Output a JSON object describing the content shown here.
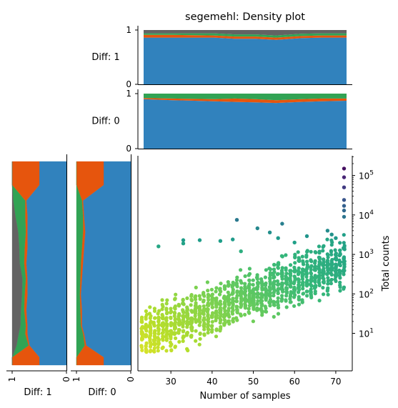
{
  "colors": {
    "blue": "#3182bd",
    "orange": "#e6550d",
    "green": "#31a354",
    "gray": "#636363",
    "purple": "#9467bd",
    "tan": "#c49c94",
    "scatter_low": "#fde725",
    "scatter_high": "#440154"
  },
  "chart_data": [
    {
      "type": "area",
      "panel": "top-diff-1",
      "title": "segemehl: Density plot",
      "ylabel": "Diff: 1",
      "ylim": [
        0,
        1
      ],
      "yticks": [
        "0",
        "1"
      ],
      "x": [
        23,
        30,
        40,
        45,
        50,
        55,
        61,
        66,
        72
      ],
      "stack": [
        {
          "color_key": "blue",
          "values": [
            0.86,
            0.86,
            0.86,
            0.84,
            0.84,
            0.82,
            0.85,
            0.86,
            0.86
          ]
        },
        {
          "color_key": "orange",
          "values": [
            0.05,
            0.05,
            0.04,
            0.04,
            0.04,
            0.04,
            0.04,
            0.04,
            0.04
          ]
        },
        {
          "color_key": "green",
          "values": [
            0.03,
            0.03,
            0.04,
            0.04,
            0.04,
            0.04,
            0.04,
            0.04,
            0.04
          ]
        },
        {
          "color_key": "gray",
          "values": [
            0.06,
            0.06,
            0.06,
            0.08,
            0.08,
            0.1,
            0.07,
            0.06,
            0.06
          ]
        }
      ]
    },
    {
      "type": "area",
      "panel": "top-diff-0",
      "ylabel": "Diff: 0",
      "ylim": [
        0,
        1
      ],
      "yticks": [
        "0",
        "1"
      ],
      "x": [
        23,
        30,
        40,
        45,
        50,
        55,
        61,
        66,
        72
      ],
      "stack": [
        {
          "color_key": "blue",
          "values": [
            0.9,
            0.88,
            0.86,
            0.85,
            0.84,
            0.83,
            0.85,
            0.86,
            0.87
          ]
        },
        {
          "color_key": "orange",
          "values": [
            0.02,
            0.03,
            0.04,
            0.06,
            0.06,
            0.05,
            0.05,
            0.05,
            0.04
          ]
        },
        {
          "color_key": "green",
          "values": [
            0.08,
            0.09,
            0.1,
            0.09,
            0.1,
            0.12,
            0.1,
            0.09,
            0.09
          ]
        }
      ]
    },
    {
      "type": "area",
      "panel": "side-diff-1",
      "xlabel": "Diff: 1",
      "xticks": [
        "1",
        "0"
      ],
      "orientation": "horizontal",
      "y_log": [
        0.1,
        0.3,
        0.6,
        0.9,
        1.1,
        1.5,
        1.9,
        2.3,
        2.7,
        3.1,
        3.5,
        3.9,
        4.3,
        4.7,
        5.0,
        5.3
      ],
      "stack": [
        {
          "color_key": "blue",
          "values": [
            0.5,
            0.5,
            0.68,
            0.72,
            0.72,
            0.74,
            0.72,
            0.72,
            0.74,
            0.72,
            0.72,
            0.72,
            0.74,
            0.5,
            0.5,
            0.5
          ]
        },
        {
          "color_key": "orange",
          "values": [
            0.5,
            0.5,
            0.02,
            0.04,
            0.03,
            0.04,
            0.05,
            0.03,
            0.04,
            0.05,
            0.03,
            0.04,
            0.02,
            0.5,
            0.5,
            0.5
          ]
        },
        {
          "color_key": "green",
          "values": [
            0.0,
            0.0,
            0.22,
            0.12,
            0.1,
            0.06,
            0.05,
            0.06,
            0.08,
            0.1,
            0.14,
            0.18,
            0.22,
            0.0,
            0.0,
            0.0
          ]
        },
        {
          "color_key": "gray",
          "values": [
            0.0,
            0.0,
            0.08,
            0.12,
            0.15,
            0.16,
            0.18,
            0.19,
            0.14,
            0.13,
            0.11,
            0.06,
            0.02,
            0.0,
            0.0,
            0.0
          ]
        }
      ]
    },
    {
      "type": "area",
      "panel": "side-diff-0",
      "xlabel": "Diff: 0",
      "xticks": [
        "1",
        "0"
      ],
      "orientation": "horizontal",
      "y_log": [
        0.1,
        0.3,
        0.6,
        0.9,
        1.1,
        1.5,
        1.9,
        2.3,
        2.7,
        3.1,
        3.5,
        3.9,
        4.3,
        4.7,
        5.0,
        5.3
      ],
      "stack": [
        {
          "color_key": "blue",
          "values": [
            0.5,
            0.5,
            0.82,
            0.86,
            0.9,
            0.9,
            0.92,
            0.9,
            0.88,
            0.86,
            0.84,
            0.86,
            0.88,
            0.5,
            0.5,
            0.5
          ]
        },
        {
          "color_key": "orange",
          "values": [
            0.5,
            0.5,
            0.03,
            0.02,
            0.02,
            0.03,
            0.02,
            0.03,
            0.04,
            0.04,
            0.04,
            0.02,
            0.02,
            0.5,
            0.5,
            0.5
          ]
        },
        {
          "color_key": "green",
          "values": [
            0.0,
            0.0,
            0.15,
            0.12,
            0.08,
            0.07,
            0.06,
            0.07,
            0.08,
            0.1,
            0.12,
            0.12,
            0.1,
            0.0,
            0.0,
            0.0
          ]
        }
      ]
    },
    {
      "type": "scatter",
      "panel": "main",
      "xlabel": "Number of samples",
      "ylabel": "Total counts",
      "xlim": [
        22,
        74
      ],
      "ylim_log10": [
        0.05,
        5.5
      ],
      "y_scale": "log",
      "xticks": [
        30,
        40,
        50,
        60,
        70
      ],
      "yticks": [
        {
          "label": "10",
          "exp": "1",
          "log": 1
        },
        {
          "label": "10",
          "exp": "2",
          "log": 2
        },
        {
          "label": "10",
          "exp": "3",
          "log": 3
        },
        {
          "label": "10",
          "exp": "4",
          "log": 4
        },
        {
          "label": "10",
          "exp": "5",
          "log": 5
        }
      ],
      "color_scale": "viridis (yellow = few samples per position, purple = many)",
      "trend": {
        "x_range": [
          23,
          72
        ],
        "log_center": [
          0.95,
          2.8
        ],
        "log_spread": 0.55
      },
      "outliers": [
        {
          "x": 27,
          "y": 1600
        },
        {
          "x": 33,
          "y": 2300
        },
        {
          "x": 33,
          "y": 1900
        },
        {
          "x": 37,
          "y": 2300
        },
        {
          "x": 42,
          "y": 2200
        },
        {
          "x": 45,
          "y": 2400
        },
        {
          "x": 46,
          "y": 7500
        },
        {
          "x": 47,
          "y": 1200
        },
        {
          "x": 51,
          "y": 4600
        },
        {
          "x": 54,
          "y": 3600
        },
        {
          "x": 56,
          "y": 2600
        },
        {
          "x": 57,
          "y": 6000
        },
        {
          "x": 60,
          "y": 2000
        },
        {
          "x": 63,
          "y": 2900
        },
        {
          "x": 68,
          "y": 4000
        },
        {
          "x": 69,
          "y": 3200
        },
        {
          "x": 70,
          "y": 2600
        },
        {
          "x": 72,
          "y": 150000
        },
        {
          "x": 72,
          "y": 90000
        },
        {
          "x": 72,
          "y": 50000
        },
        {
          "x": 72,
          "y": 24000
        },
        {
          "x": 72,
          "y": 17000
        },
        {
          "x": 72,
          "y": 13000
        },
        {
          "x": 72,
          "y": 9000
        }
      ]
    }
  ]
}
